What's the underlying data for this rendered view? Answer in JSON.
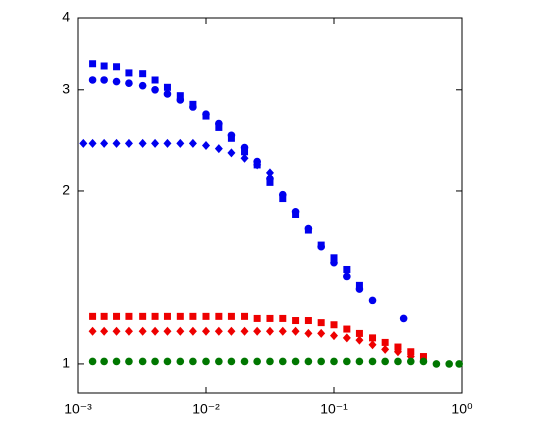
{
  "chart_data": {
    "type": "scatter",
    "xscale": "log",
    "yscale": "log",
    "xlim": [
      0.001,
      1
    ],
    "ylim": [
      0.89,
      4
    ],
    "xticks": [
      {
        "value": 0.001,
        "label": "10⁻³"
      },
      {
        "value": 0.01,
        "label": "10⁻²"
      },
      {
        "value": 0.1,
        "label": "10⁻¹"
      },
      {
        "value": 1,
        "label": "10⁰"
      }
    ],
    "yticks": [
      1,
      2,
      3,
      4
    ],
    "series": [
      {
        "color": "#0000ee",
        "marker": "square",
        "x": [
          0.0013,
          0.0016,
          0.002,
          0.0025,
          0.0032,
          0.004,
          0.005,
          0.0063,
          0.0079,
          0.01,
          0.0126,
          0.0158,
          0.02,
          0.0251,
          0.0316,
          0.0398,
          0.0501,
          0.0631,
          0.0794,
          0.1,
          0.126,
          0.158
        ],
        "values": [
          3.33,
          3.3,
          3.29,
          3.21,
          3.2,
          3.12,
          3.03,
          2.93,
          2.83,
          2.7,
          2.58,
          2.47,
          2.34,
          2.22,
          2.07,
          1.94,
          1.82,
          1.71,
          1.61,
          1.53,
          1.46,
          1.37
        ]
      },
      {
        "color": "#0000ee",
        "marker": "circle",
        "x": [
          0.0013,
          0.0016,
          0.002,
          0.0025,
          0.0032,
          0.004,
          0.005,
          0.0063,
          0.0079,
          0.01,
          0.0126,
          0.0158,
          0.02,
          0.0251,
          0.0316,
          0.0398,
          0.0501,
          0.0631,
          0.0794,
          0.1,
          0.126,
          0.158,
          0.2,
          0.35
        ],
        "values": [
          3.12,
          3.12,
          3.1,
          3.08,
          3.05,
          3.0,
          2.95,
          2.88,
          2.8,
          2.72,
          2.62,
          2.5,
          2.38,
          2.25,
          2.1,
          1.97,
          1.84,
          1.72,
          1.6,
          1.5,
          1.42,
          1.35,
          1.29,
          1.2
        ]
      },
      {
        "color": "#0000ee",
        "marker": "diamond",
        "x": [
          0.0011,
          0.0013,
          0.0016,
          0.002,
          0.0025,
          0.0032,
          0.004,
          0.005,
          0.0063,
          0.0079,
          0.01,
          0.0126,
          0.0158,
          0.02,
          0.0251,
          0.0316
        ],
        "values": [
          2.42,
          2.42,
          2.42,
          2.42,
          2.42,
          2.42,
          2.42,
          2.42,
          2.42,
          2.42,
          2.4,
          2.37,
          2.33,
          2.28,
          2.22,
          2.15
        ]
      },
      {
        "color": "#ee0000",
        "marker": "square",
        "x": [
          0.0013,
          0.0016,
          0.002,
          0.0025,
          0.0032,
          0.004,
          0.005,
          0.0063,
          0.0079,
          0.01,
          0.0126,
          0.0158,
          0.02,
          0.0251,
          0.0316,
          0.0398,
          0.0501,
          0.0631,
          0.0794,
          0.1,
          0.126,
          0.158,
          0.2,
          0.251,
          0.316,
          0.398,
          0.5
        ],
        "values": [
          1.21,
          1.21,
          1.21,
          1.21,
          1.21,
          1.21,
          1.21,
          1.21,
          1.21,
          1.21,
          1.21,
          1.21,
          1.21,
          1.2,
          1.2,
          1.2,
          1.19,
          1.19,
          1.18,
          1.17,
          1.15,
          1.13,
          1.11,
          1.09,
          1.07,
          1.05,
          1.03
        ]
      },
      {
        "color": "#ee0000",
        "marker": "diamond",
        "x": [
          0.0013,
          0.0016,
          0.002,
          0.0025,
          0.0032,
          0.004,
          0.005,
          0.0063,
          0.0079,
          0.01,
          0.0126,
          0.0158,
          0.02,
          0.0251,
          0.0316,
          0.0398,
          0.0501,
          0.0631,
          0.0794,
          0.1,
          0.126,
          0.158,
          0.2,
          0.251,
          0.316,
          0.398
        ],
        "values": [
          1.14,
          1.14,
          1.14,
          1.14,
          1.14,
          1.14,
          1.14,
          1.14,
          1.14,
          1.14,
          1.14,
          1.14,
          1.14,
          1.14,
          1.14,
          1.14,
          1.14,
          1.13,
          1.13,
          1.12,
          1.11,
          1.1,
          1.08,
          1.06,
          1.05,
          1.03
        ]
      },
      {
        "color": "#007700",
        "marker": "circle",
        "x": [
          0.0013,
          0.0016,
          0.002,
          0.0025,
          0.0032,
          0.004,
          0.005,
          0.0063,
          0.0079,
          0.01,
          0.0126,
          0.0158,
          0.02,
          0.0251,
          0.0316,
          0.0398,
          0.0501,
          0.0631,
          0.0794,
          0.1,
          0.126,
          0.158,
          0.2,
          0.251,
          0.316,
          0.398,
          0.5,
          0.631,
          0.794,
          0.95
        ],
        "values": [
          1.01,
          1.01,
          1.01,
          1.01,
          1.01,
          1.01,
          1.01,
          1.01,
          1.01,
          1.01,
          1.01,
          1.01,
          1.01,
          1.01,
          1.01,
          1.01,
          1.01,
          1.01,
          1.01,
          1.01,
          1.01,
          1.01,
          1.01,
          1.01,
          1.01,
          1.01,
          1.01,
          1.0,
          1.0,
          1.0
        ]
      }
    ]
  }
}
